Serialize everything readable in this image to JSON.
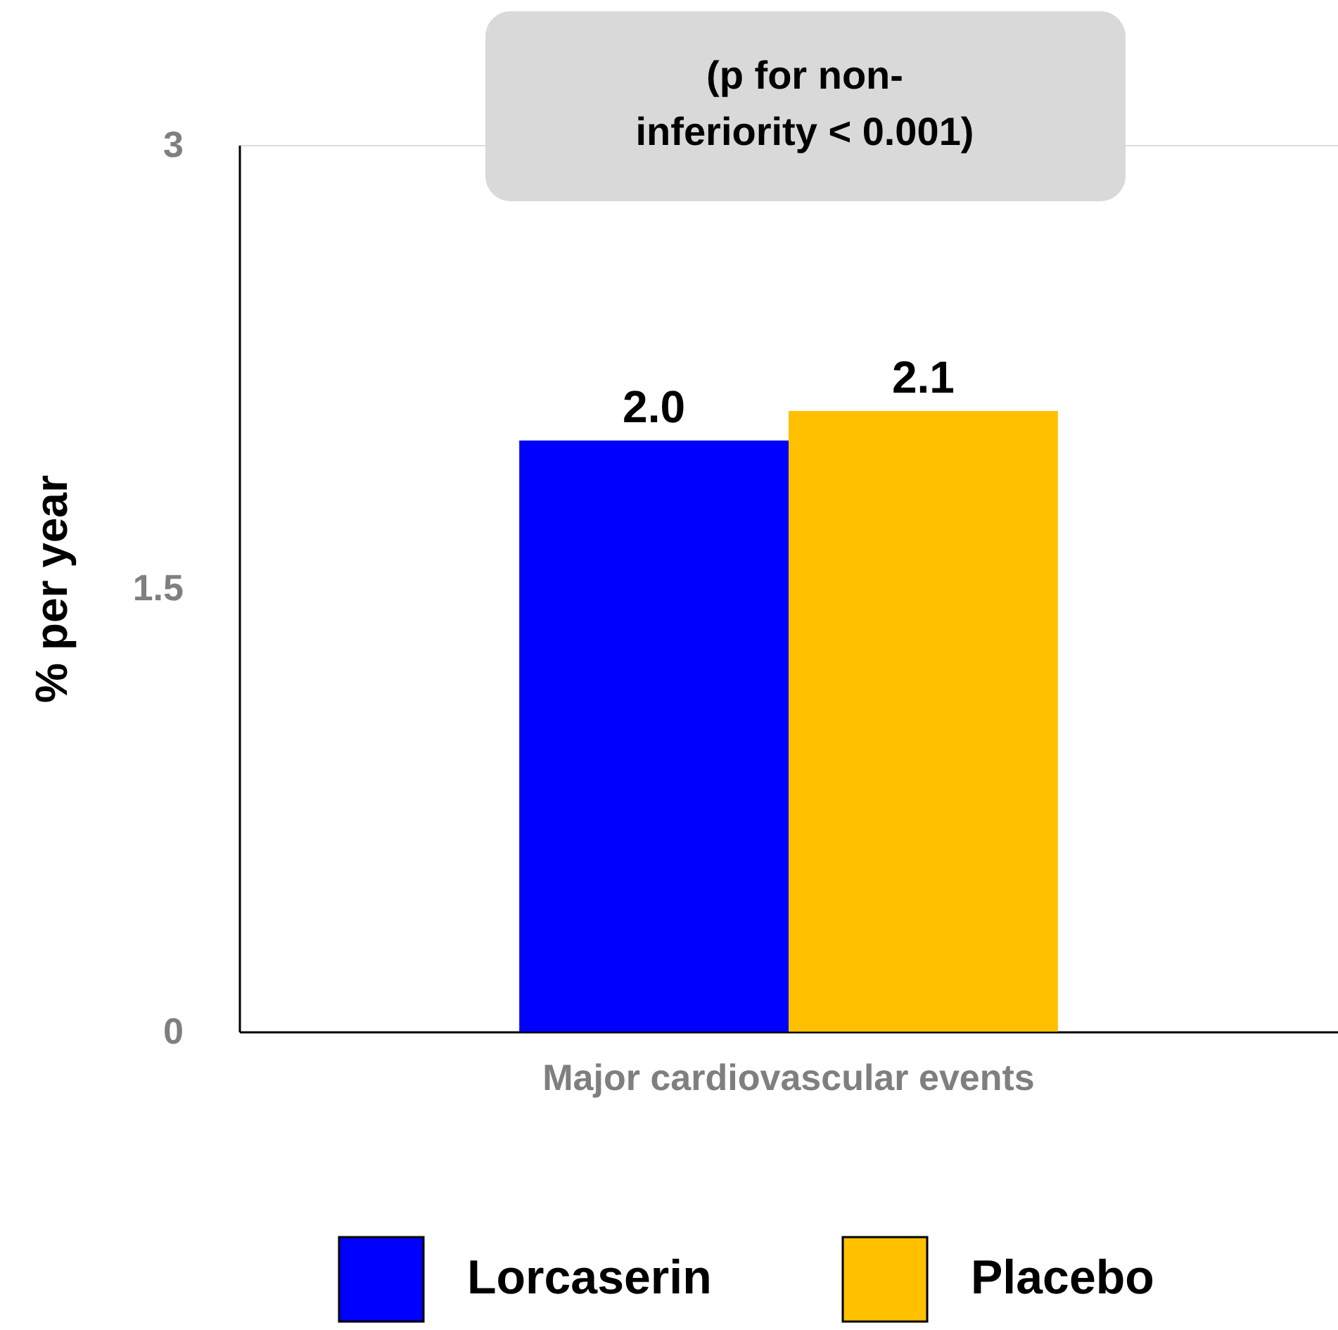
{
  "chart_data": {
    "type": "bar",
    "ylabel": "% per year",
    "categories": [
      "Major cardiovascular events"
    ],
    "series": [
      {
        "name": "Lorcaserin",
        "color": "#0000ff",
        "values": [
          2.0
        ]
      },
      {
        "name": "Placebo",
        "color": "#ffc000",
        "values": [
          2.1
        ]
      }
    ],
    "value_labels": [
      "2.0",
      "2.1"
    ],
    "ylim": [
      0,
      3
    ],
    "yticks": [
      0,
      1.5,
      3
    ],
    "legend": "bottom",
    "grid": false,
    "annotations": [
      "(p for non-inferiority < 0.001)"
    ]
  }
}
